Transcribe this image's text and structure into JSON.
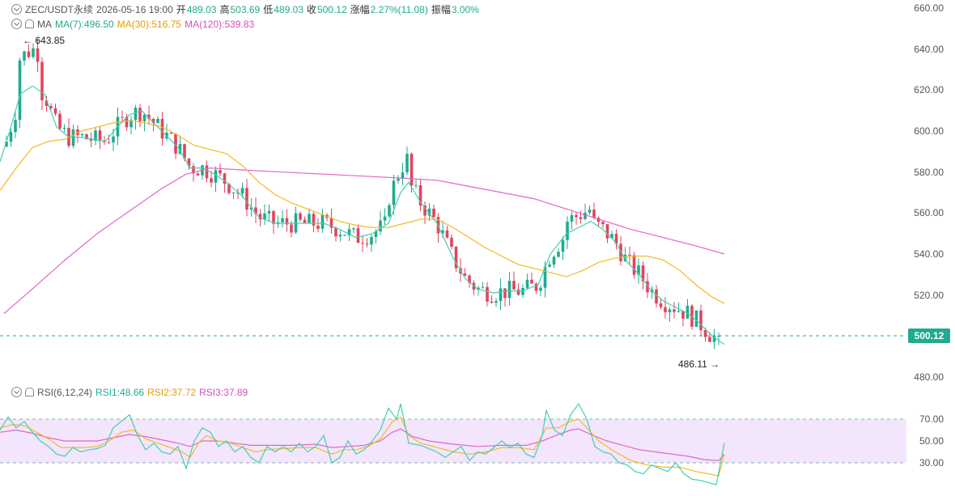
{
  "header": {
    "symbol": "ZEC/USDT永续",
    "datetime": "2026-05-16 19:00",
    "open_label": "开",
    "open": "489.03",
    "high_label": "高",
    "high": "503.69",
    "low_label": "低",
    "low": "489.03",
    "close_label": "收",
    "close": "500.12",
    "change_label": "涨幅",
    "change": "2.27%(11.08)",
    "amplitude_label": "振幅",
    "amplitude": "3.00%"
  },
  "ma_legend": {
    "name": "MA",
    "ma7": "MA(7):496.50",
    "ma30": "MA(30):516.75",
    "ma120": "MA(120):539.83"
  },
  "rsi_legend": {
    "name": "RSI(6,12,24)",
    "rsi1": "RSI1:48.66",
    "rsi2": "RSI2:37.72",
    "rsi3": "RSI3:37.89"
  },
  "price_axis": [
    "660.00",
    "640.00",
    "620.00",
    "600.00",
    "580.00",
    "560.00",
    "540.00",
    "520.00",
    "500.00",
    "480.00"
  ],
  "rsi_axis": [
    "70.00",
    "50.00",
    "30.00"
  ],
  "current_price": "500.12",
  "annotations": {
    "high": "643.85",
    "low": "486.11"
  },
  "colors": {
    "up": "#1fab8f",
    "down": "#e2445c",
    "ma7": "#3fd1b0",
    "ma30": "#f7b825",
    "ma120": "#e066c8",
    "rsi1": "#3fd1b0",
    "rsi2": "#f7b825",
    "rsi3": "#e066c8",
    "rsi_band": "#f3e5fb"
  },
  "chart_data": {
    "type": "candlestick",
    "ylim": [
      478,
      662
    ],
    "rsi_ylim": [
      5,
      95
    ],
    "rsi_band": [
      30,
      70
    ],
    "ma7": [
      [
        0,
        585
      ],
      [
        12,
        600
      ],
      [
        25,
        618
      ],
      [
        40,
        622
      ],
      [
        55,
        618
      ],
      [
        70,
        602
      ],
      [
        85,
        597
      ],
      [
        100,
        597
      ],
      [
        115,
        596
      ],
      [
        130,
        595
      ],
      [
        145,
        602
      ],
      [
        160,
        608
      ],
      [
        175,
        610
      ],
      [
        190,
        604
      ],
      [
        205,
        598
      ],
      [
        220,
        592
      ],
      [
        235,
        582
      ],
      [
        250,
        582
      ],
      [
        265,
        579
      ],
      [
        280,
        575
      ],
      [
        300,
        568
      ],
      [
        320,
        558
      ],
      [
        340,
        555
      ],
      [
        360,
        555
      ],
      [
        380,
        555
      ],
      [
        400,
        555
      ],
      [
        420,
        552
      ],
      [
        440,
        548
      ],
      [
        460,
        550
      ],
      [
        480,
        555
      ],
      [
        495,
        570
      ],
      [
        505,
        575
      ],
      [
        520,
        565
      ],
      [
        540,
        555
      ],
      [
        560,
        538
      ],
      [
        575,
        528
      ],
      [
        590,
        523
      ],
      [
        610,
        521
      ],
      [
        625,
        522
      ],
      [
        645,
        522
      ],
      [
        665,
        525
      ],
      [
        680,
        540
      ],
      [
        700,
        550
      ],
      [
        715,
        553
      ],
      [
        730,
        556
      ],
      [
        745,
        552
      ],
      [
        760,
        546
      ],
      [
        775,
        536
      ],
      [
        790,
        530
      ],
      [
        805,
        522
      ],
      [
        820,
        517
      ],
      [
        835,
        514
      ],
      [
        850,
        511
      ],
      [
        865,
        506
      ],
      [
        880,
        500
      ],
      [
        895,
        496
      ]
    ],
    "ma30": [
      [
        0,
        571
      ],
      [
        20,
        582
      ],
      [
        40,
        592
      ],
      [
        60,
        595
      ],
      [
        80,
        596
      ],
      [
        100,
        600
      ],
      [
        120,
        602
      ],
      [
        140,
        604
      ],
      [
        160,
        605
      ],
      [
        180,
        604
      ],
      [
        200,
        602
      ],
      [
        220,
        598
      ],
      [
        240,
        593
      ],
      [
        260,
        591
      ],
      [
        280,
        589
      ],
      [
        300,
        583
      ],
      [
        320,
        575
      ],
      [
        340,
        569
      ],
      [
        360,
        565
      ],
      [
        380,
        562
      ],
      [
        400,
        559
      ],
      [
        420,
        556
      ],
      [
        440,
        554
      ],
      [
        460,
        553
      ],
      [
        480,
        553
      ],
      [
        500,
        555
      ],
      [
        520,
        557
      ],
      [
        540,
        557
      ],
      [
        560,
        553
      ],
      [
        580,
        548
      ],
      [
        600,
        543
      ],
      [
        620,
        539
      ],
      [
        640,
        535
      ],
      [
        660,
        533
      ],
      [
        680,
        531
      ],
      [
        700,
        529
      ],
      [
        720,
        532
      ],
      [
        740,
        536
      ],
      [
        760,
        538
      ],
      [
        780,
        539
      ],
      [
        800,
        539
      ],
      [
        820,
        537
      ],
      [
        840,
        532
      ],
      [
        860,
        525
      ],
      [
        880,
        519
      ],
      [
        895,
        516
      ]
    ],
    "ma120": [
      [
        5,
        511
      ],
      [
        40,
        523
      ],
      [
        80,
        537
      ],
      [
        120,
        550
      ],
      [
        160,
        561
      ],
      [
        200,
        572
      ],
      [
        230,
        579
      ],
      [
        260,
        582
      ],
      [
        300,
        581
      ],
      [
        350,
        580
      ],
      [
        400,
        579
      ],
      [
        450,
        578
      ],
      [
        500,
        577
      ],
      [
        540,
        576
      ],
      [
        580,
        573
      ],
      [
        620,
        570
      ],
      [
        660,
        567
      ],
      [
        700,
        562
      ],
      [
        740,
        557
      ],
      [
        780,
        552
      ],
      [
        820,
        548
      ],
      [
        860,
        544
      ],
      [
        895,
        540
      ]
    ],
    "rsi1": [
      [
        0,
        60
      ],
      [
        10,
        72
      ],
      [
        20,
        62
      ],
      [
        30,
        68
      ],
      [
        40,
        58
      ],
      [
        50,
        50
      ],
      [
        60,
        45
      ],
      [
        70,
        38
      ],
      [
        80,
        36
      ],
      [
        90,
        44
      ],
      [
        100,
        40
      ],
      [
        110,
        42
      ],
      [
        120,
        43
      ],
      [
        130,
        46
      ],
      [
        140,
        62
      ],
      [
        150,
        68
      ],
      [
        160,
        74
      ],
      [
        170,
        55
      ],
      [
        180,
        42
      ],
      [
        190,
        48
      ],
      [
        200,
        40
      ],
      [
        210,
        38
      ],
      [
        220,
        45
      ],
      [
        230,
        25
      ],
      [
        240,
        50
      ],
      [
        250,
        62
      ],
      [
        260,
        58
      ],
      [
        270,
        45
      ],
      [
        280,
        50
      ],
      [
        290,
        40
      ],
      [
        300,
        45
      ],
      [
        310,
        35
      ],
      [
        320,
        30
      ],
      [
        330,
        45
      ],
      [
        340,
        40
      ],
      [
        350,
        45
      ],
      [
        360,
        40
      ],
      [
        370,
        48
      ],
      [
        380,
        40
      ],
      [
        390,
        45
      ],
      [
        400,
        55
      ],
      [
        410,
        30
      ],
      [
        420,
        35
      ],
      [
        430,
        50
      ],
      [
        440,
        38
      ],
      [
        450,
        42
      ],
      [
        460,
        50
      ],
      [
        470,
        60
      ],
      [
        480,
        80
      ],
      [
        490,
        70
      ],
      [
        495,
        84
      ],
      [
        505,
        48
      ],
      [
        520,
        46
      ],
      [
        530,
        43
      ],
      [
        540,
        40
      ],
      [
        550,
        35
      ],
      [
        560,
        40
      ],
      [
        570,
        45
      ],
      [
        580,
        32
      ],
      [
        590,
        40
      ],
      [
        600,
        38
      ],
      [
        610,
        44
      ],
      [
        620,
        50
      ],
      [
        630,
        44
      ],
      [
        640,
        48
      ],
      [
        650,
        38
      ],
      [
        660,
        35
      ],
      [
        670,
        55
      ],
      [
        675,
        78
      ],
      [
        685,
        60
      ],
      [
        695,
        55
      ],
      [
        705,
        74
      ],
      [
        715,
        84
      ],
      [
        725,
        70
      ],
      [
        735,
        45
      ],
      [
        745,
        40
      ],
      [
        755,
        38
      ],
      [
        765,
        30
      ],
      [
        775,
        28
      ],
      [
        785,
        22
      ],
      [
        795,
        20
      ],
      [
        805,
        28
      ],
      [
        815,
        25
      ],
      [
        825,
        22
      ],
      [
        835,
        30
      ],
      [
        845,
        20
      ],
      [
        855,
        15
      ],
      [
        865,
        14
      ],
      [
        875,
        12
      ],
      [
        885,
        10
      ],
      [
        895,
        48
      ]
    ],
    "rsi2": [
      [
        0,
        62
      ],
      [
        15,
        65
      ],
      [
        30,
        64
      ],
      [
        45,
        58
      ],
      [
        60,
        52
      ],
      [
        75,
        44
      ],
      [
        90,
        44
      ],
      [
        105,
        44
      ],
      [
        120,
        45
      ],
      [
        135,
        50
      ],
      [
        150,
        58
      ],
      [
        165,
        60
      ],
      [
        180,
        52
      ],
      [
        195,
        48
      ],
      [
        210,
        44
      ],
      [
        225,
        40
      ],
      [
        235,
        35
      ],
      [
        245,
        48
      ],
      [
        255,
        55
      ],
      [
        270,
        50
      ],
      [
        285,
        48
      ],
      [
        300,
        44
      ],
      [
        315,
        40
      ],
      [
        330,
        42
      ],
      [
        350,
        43
      ],
      [
        370,
        44
      ],
      [
        390,
        44
      ],
      [
        410,
        38
      ],
      [
        425,
        42
      ],
      [
        440,
        42
      ],
      [
        455,
        45
      ],
      [
        470,
        52
      ],
      [
        485,
        68
      ],
      [
        495,
        72
      ],
      [
        505,
        55
      ],
      [
        520,
        48
      ],
      [
        540,
        44
      ],
      [
        560,
        40
      ],
      [
        580,
        38
      ],
      [
        600,
        40
      ],
      [
        620,
        44
      ],
      [
        640,
        44
      ],
      [
        660,
        42
      ],
      [
        675,
        62
      ],
      [
        690,
        62
      ],
      [
        705,
        68
      ],
      [
        715,
        70
      ],
      [
        725,
        62
      ],
      [
        740,
        50
      ],
      [
        760,
        40
      ],
      [
        780,
        32
      ],
      [
        800,
        28
      ],
      [
        820,
        26
      ],
      [
        840,
        26
      ],
      [
        860,
        22
      ],
      [
        875,
        20
      ],
      [
        888,
        18
      ],
      [
        895,
        38
      ]
    ],
    "rsi3": [
      [
        0,
        58
      ],
      [
        20,
        60
      ],
      [
        40,
        57
      ],
      [
        60,
        53
      ],
      [
        80,
        50
      ],
      [
        100,
        50
      ],
      [
        120,
        50
      ],
      [
        140,
        53
      ],
      [
        160,
        56
      ],
      [
        180,
        54
      ],
      [
        200,
        51
      ],
      [
        220,
        48
      ],
      [
        235,
        45
      ],
      [
        250,
        50
      ],
      [
        270,
        50
      ],
      [
        290,
        48
      ],
      [
        310,
        46
      ],
      [
        330,
        46
      ],
      [
        360,
        46
      ],
      [
        390,
        47
      ],
      [
        410,
        44
      ],
      [
        430,
        45
      ],
      [
        450,
        46
      ],
      [
        470,
        50
      ],
      [
        485,
        58
      ],
      [
        495,
        61
      ],
      [
        510,
        54
      ],
      [
        530,
        50
      ],
      [
        560,
        47
      ],
      [
        590,
        45
      ],
      [
        620,
        46
      ],
      [
        650,
        46
      ],
      [
        670,
        50
      ],
      [
        690,
        56
      ],
      [
        705,
        60
      ],
      [
        715,
        61
      ],
      [
        730,
        56
      ],
      [
        750,
        50
      ],
      [
        770,
        46
      ],
      [
        790,
        42
      ],
      [
        810,
        40
      ],
      [
        830,
        38
      ],
      [
        850,
        36
      ],
      [
        870,
        33
      ],
      [
        888,
        32
      ],
      [
        895,
        38
      ]
    ]
  }
}
